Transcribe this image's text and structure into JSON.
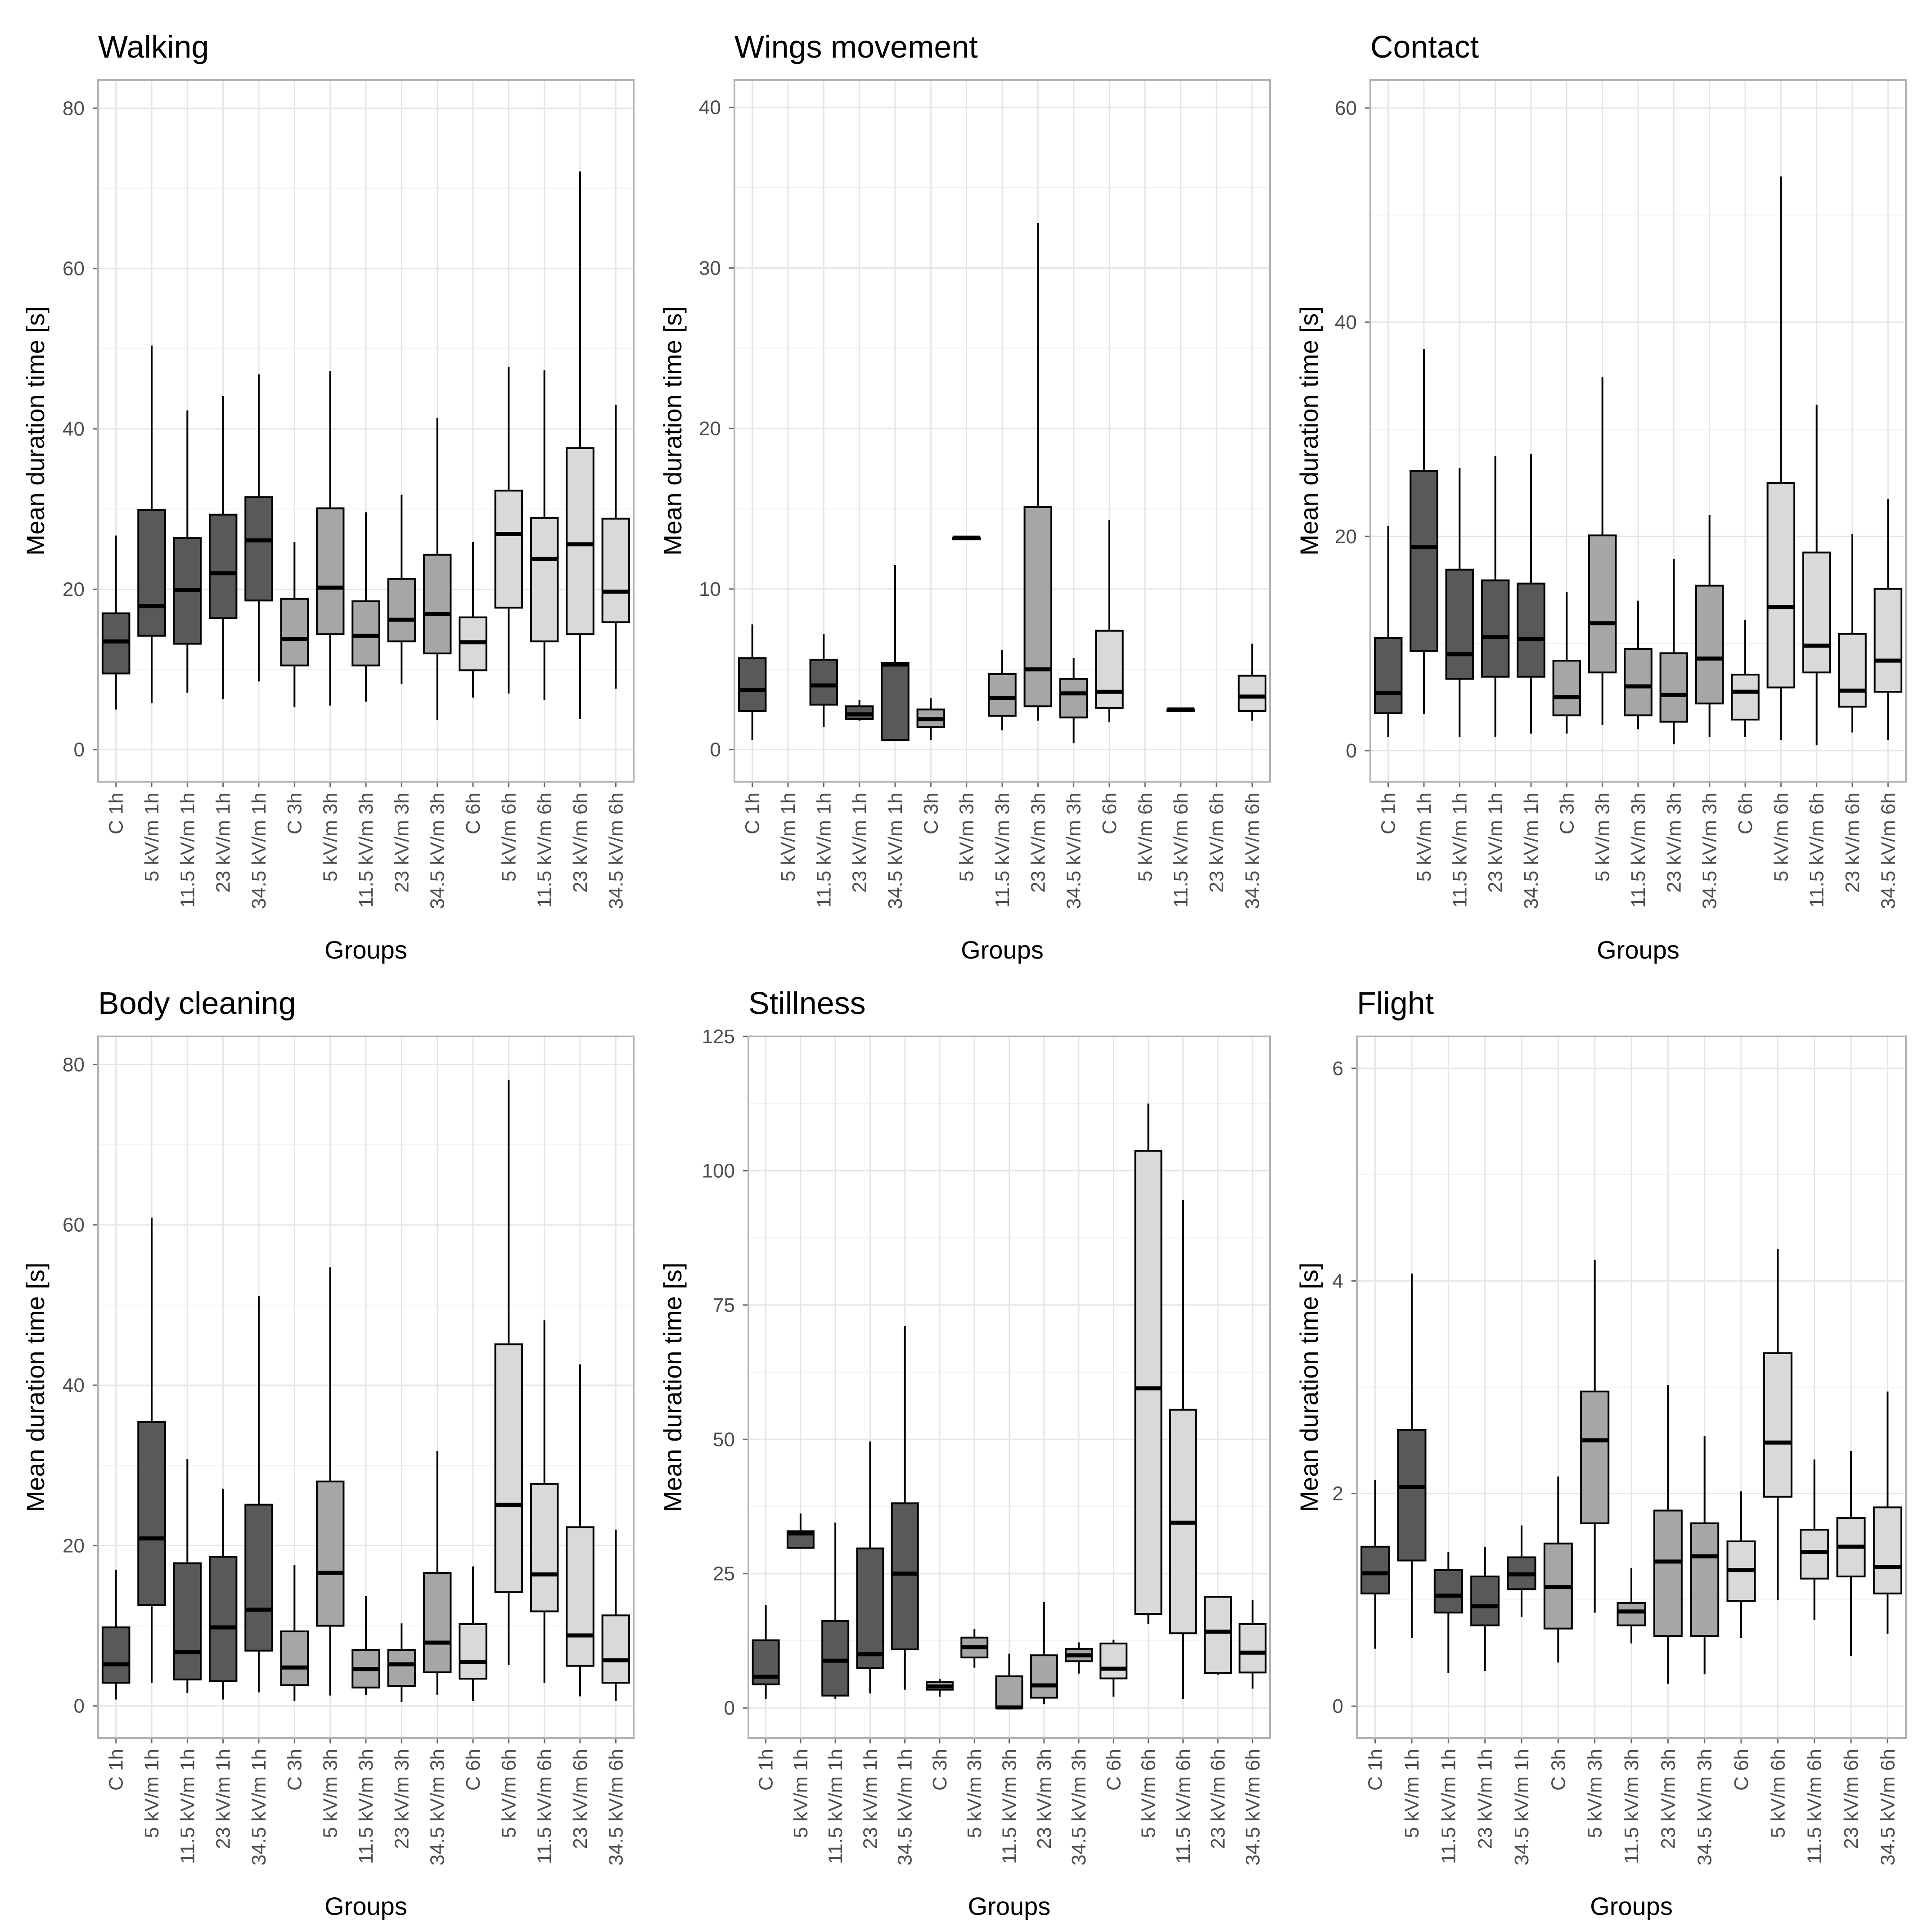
{
  "figure": {
    "groups": [
      "C 1h",
      "5 kV/m 1h",
      "11.5 kV/m 1h",
      "23 kV/m 1h",
      "34.5 kV/m 1h",
      "C 3h",
      "5 kV/m 3h",
      "11.5 kV/m 3h",
      "23 kV/m 3h",
      "34.5 kV/m 3h",
      "C 6h",
      "5 kV/m 6h",
      "11.5 kV/m 6h",
      "23 kV/m 6h",
      "34.5 kV/m 6h"
    ],
    "colors": {
      "1h": "#595959",
      "3h": "#a6a6a6",
      "6h": "#d9d9d9",
      "frame": "#b3b3b3",
      "grid": "#e5e5e5"
    }
  },
  "chart_data": [
    {
      "type": "boxplot",
      "title": "Walking",
      "xlabel": "Groups",
      "ylabel": "Mean duration time [s]",
      "ylim": [
        -4,
        83.5
      ],
      "yticks": [
        0,
        20,
        40,
        60,
        80
      ],
      "categories": [
        "C 1h",
        "5 kV/m 1h",
        "11.5 kV/m 1h",
        "23 kV/m 1h",
        "34.5 kV/m 1h",
        "C 3h",
        "5 kV/m 3h",
        "11.5 kV/m 3h",
        "23 kV/m 3h",
        "34.5 kV/m 3h",
        "C 6h",
        "5 kV/m 6h",
        "11.5 kV/m 6h",
        "23 kV/m 6h",
        "34.5 kV/m 6h"
      ],
      "boxes": [
        {
          "min": 5,
          "q1": 9.5,
          "median": 13.5,
          "q3": 17,
          "max": 26.7
        },
        {
          "min": 5.8,
          "q1": 14.2,
          "median": 17.9,
          "q3": 29.9,
          "max": 50.4
        },
        {
          "min": 7.1,
          "q1": 13.2,
          "median": 19.9,
          "q3": 26.4,
          "max": 42.3
        },
        {
          "min": 6.3,
          "q1": 16.4,
          "median": 22,
          "q3": 29.3,
          "max": 44.1
        },
        {
          "min": 8.5,
          "q1": 18.6,
          "median": 26.1,
          "q3": 31.5,
          "max": 46.8
        },
        {
          "min": 5.3,
          "q1": 10.5,
          "median": 13.8,
          "q3": 18.8,
          "max": 25.9
        },
        {
          "min": 5.5,
          "q1": 14.4,
          "median": 20.2,
          "q3": 30.1,
          "max": 47.2
        },
        {
          "min": 6,
          "q1": 10.5,
          "median": 14.2,
          "q3": 18.5,
          "max": 29.6
        },
        {
          "min": 8.2,
          "q1": 13.5,
          "median": 16.2,
          "q3": 21.3,
          "max": 31.8
        },
        {
          "min": 3.7,
          "q1": 12,
          "median": 16.9,
          "q3": 24.3,
          "max": 41.4
        },
        {
          "min": 6.5,
          "q1": 9.9,
          "median": 13.4,
          "q3": 16.5,
          "max": 25.9
        },
        {
          "min": 7,
          "q1": 17.7,
          "median": 26.9,
          "q3": 32.3,
          "max": 47.7
        },
        {
          "min": 6.2,
          "q1": 13.5,
          "median": 23.8,
          "q3": 28.9,
          "max": 47.3
        },
        {
          "min": 3.8,
          "q1": 14.4,
          "median": 25.6,
          "q3": 37.6,
          "max": 72.1
        },
        {
          "min": 7.6,
          "q1": 15.9,
          "median": 19.7,
          "q3": 28.8,
          "max": 43
        }
      ]
    },
    {
      "type": "boxplot",
      "title": "Wings movement",
      "xlabel": "Groups",
      "ylabel": "Mean duration time [s]",
      "ylim": [
        -2,
        41.7
      ],
      "yticks": [
        0,
        10,
        20,
        30,
        40
      ],
      "categories": [
        "C 1h",
        "5 kV/m 1h",
        "11.5 kV/m 1h",
        "23 kV/m 1h",
        "34.5 kV/m 1h",
        "C 3h",
        "5 kV/m 3h",
        "11.5 kV/m 3h",
        "23 kV/m 3h",
        "34.5 kV/m 3h",
        "C 6h",
        "5 kV/m 6h",
        "11.5 kV/m 6h",
        "23 kV/m 6h",
        "34.5 kV/m 6h"
      ],
      "boxes": [
        {
          "min": 0.6,
          "q1": 2.4,
          "median": 3.7,
          "q3": 5.7,
          "max": 7.8
        },
        null,
        {
          "min": 1.4,
          "q1": 2.8,
          "median": 4,
          "q3": 5.6,
          "max": 7.2
        },
        {
          "min": 1.8,
          "q1": 1.9,
          "median": 2.2,
          "q3": 2.7,
          "max": 3.1
        },
        {
          "min": 0.6,
          "q1": 0.6,
          "median": 5.3,
          "q3": 5.4,
          "max": 11.5
        },
        {
          "min": 0.6,
          "q1": 1.4,
          "median": 1.9,
          "q3": 2.5,
          "max": 3.2
        },
        {
          "min": 13.1,
          "q1": 13.1,
          "median": 13.2,
          "q3": 13.2,
          "max": 13.2
        },
        {
          "min": 1.2,
          "q1": 2.1,
          "median": 3.2,
          "q3": 4.7,
          "max": 6.2
        },
        {
          "min": 1.8,
          "q1": 2.7,
          "median": 5,
          "q3": 15.1,
          "max": 32.8
        },
        {
          "min": 0.4,
          "q1": 2,
          "median": 3.5,
          "q3": 4.4,
          "max": 5.7
        },
        {
          "min": 1.7,
          "q1": 2.6,
          "median": 3.6,
          "q3": 7.4,
          "max": 14.3
        },
        null,
        {
          "min": 2.4,
          "q1": 2.4,
          "median": 2.5,
          "q3": 2.5,
          "max": 2.5
        },
        null,
        {
          "min": 1.8,
          "q1": 2.4,
          "median": 3.3,
          "q3": 4.6,
          "max": 6.6
        }
      ]
    },
    {
      "type": "boxplot",
      "title": "Contact",
      "xlabel": "Groups",
      "ylabel": "Mean duration time [s]",
      "ylim": [
        -2.9,
        62.6
      ],
      "yticks": [
        0,
        20,
        40,
        60
      ],
      "categories": [
        "C 1h",
        "5 kV/m 1h",
        "11.5 kV/m 1h",
        "23 kV/m 1h",
        "34.5 kV/m 1h",
        "C 3h",
        "5 kV/m 3h",
        "11.5 kV/m 3h",
        "23 kV/m 3h",
        "34.5 kV/m 3h",
        "C 6h",
        "5 kV/m 6h",
        "11.5 kV/m 6h",
        "23 kV/m 6h",
        "34.5 kV/m 6h"
      ],
      "boxes": [
        {
          "min": 1.3,
          "q1": 3.5,
          "median": 5.4,
          "q3": 10.5,
          "max": 21
        },
        {
          "min": 3.4,
          "q1": 9.3,
          "median": 19,
          "q3": 26.1,
          "max": 37.5
        },
        {
          "min": 1.3,
          "q1": 6.7,
          "median": 9,
          "q3": 16.9,
          "max": 26.4
        },
        {
          "min": 1.3,
          "q1": 6.9,
          "median": 10.6,
          "q3": 15.9,
          "max": 27.5
        },
        {
          "min": 1.6,
          "q1": 6.9,
          "median": 10.4,
          "q3": 15.6,
          "max": 27.7
        },
        {
          "min": 1.6,
          "q1": 3.3,
          "median": 5,
          "q3": 8.4,
          "max": 14.8
        },
        {
          "min": 2.4,
          "q1": 7.3,
          "median": 11.9,
          "q3": 20.1,
          "max": 34.9
        },
        {
          "min": 2,
          "q1": 3.3,
          "median": 6,
          "q3": 9.5,
          "max": 14
        },
        {
          "min": 0.6,
          "q1": 2.7,
          "median": 5.2,
          "q3": 9.1,
          "max": 17.9
        },
        {
          "min": 1.3,
          "q1": 4.4,
          "median": 8.6,
          "q3": 15.4,
          "max": 22
        },
        {
          "min": 1.3,
          "q1": 2.9,
          "median": 5.5,
          "q3": 7.1,
          "max": 12.2
        },
        {
          "min": 1,
          "q1": 5.9,
          "median": 13.4,
          "q3": 25,
          "max": 53.6
        },
        {
          "min": 0.5,
          "q1": 7.3,
          "median": 9.8,
          "q3": 18.5,
          "max": 32.3
        },
        {
          "min": 1.7,
          "q1": 4.1,
          "median": 5.6,
          "q3": 10.9,
          "max": 20.2
        },
        {
          "min": 1,
          "q1": 5.5,
          "median": 8.4,
          "q3": 15.1,
          "max": 23.5
        }
      ]
    },
    {
      "type": "boxplot",
      "title": "Body cleaning",
      "xlabel": "Groups",
      "ylabel": "Mean duration time [s]",
      "ylim": [
        -4,
        83.5
      ],
      "yticks": [
        0,
        20,
        40,
        60,
        80
      ],
      "categories": [
        "C 1h",
        "5 kV/m 1h",
        "11.5 kV/m 1h",
        "23 kV/m 1h",
        "34.5 kV/m 1h",
        "C 3h",
        "5 kV/m 3h",
        "11.5 kV/m 3h",
        "23 kV/m 3h",
        "34.5 kV/m 3h",
        "C 6h",
        "5 kV/m 6h",
        "11.5 kV/m 6h",
        "23 kV/m 6h",
        "34.5 kV/m 6h"
      ],
      "boxes": [
        {
          "min": 0.8,
          "q1": 2.9,
          "median": 5.2,
          "q3": 9.8,
          "max": 17
        },
        {
          "min": 2.9,
          "q1": 12.6,
          "median": 20.9,
          "q3": 35.4,
          "max": 60.9
        },
        {
          "min": 1.6,
          "q1": 3.3,
          "median": 6.7,
          "q3": 17.8,
          "max": 30.8
        },
        {
          "min": 0.8,
          "q1": 3.1,
          "median": 9.8,
          "q3": 18.6,
          "max": 27.1
        },
        {
          "min": 1.7,
          "q1": 6.9,
          "median": 12,
          "q3": 25.1,
          "max": 51.1
        },
        {
          "min": 0.6,
          "q1": 2.6,
          "median": 4.8,
          "q3": 9.3,
          "max": 17.6
        },
        {
          "min": 1.3,
          "q1": 10,
          "median": 16.6,
          "q3": 28,
          "max": 54.7
        },
        {
          "min": 1.4,
          "q1": 2.3,
          "median": 4.6,
          "q3": 7,
          "max": 13.7
        },
        {
          "min": 0.5,
          "q1": 2.5,
          "median": 5.2,
          "q3": 7,
          "max": 10.3
        },
        {
          "min": 1.4,
          "q1": 4.2,
          "median": 7.9,
          "q3": 16.6,
          "max": 31.8
        },
        {
          "min": 0.6,
          "q1": 3.4,
          "median": 5.5,
          "q3": 10.2,
          "max": 17.4
        },
        {
          "min": 5.1,
          "q1": 14.2,
          "median": 25.1,
          "q3": 45.1,
          "max": 78.1
        },
        {
          "min": 2.9,
          "q1": 11.8,
          "median": 16.4,
          "q3": 27.7,
          "max": 48.1
        },
        {
          "min": 1.2,
          "q1": 5,
          "median": 8.8,
          "q3": 22.3,
          "max": 42.6
        },
        {
          "min": 0.6,
          "q1": 2.9,
          "median": 5.7,
          "q3": 11.3,
          "max": 22
        }
      ]
    },
    {
      "type": "boxplot",
      "title": "Stillness",
      "xlabel": "Groups",
      "ylabel": "Mean duration time [s]",
      "ylim": [
        -5.6,
        125
      ],
      "yticks": [
        0,
        25,
        50,
        75,
        100,
        125
      ],
      "categories": [
        "C 1h",
        "5 kV/m 1h",
        "11.5 kV/m 1h",
        "23 kV/m 1h",
        "34.5 kV/m 1h",
        "C 3h",
        "5 kV/m 3h",
        "11.5 kV/m 3h",
        "23 kV/m 3h",
        "34.5 kV/m 3h",
        "C 6h",
        "5 kV/m 6h",
        "11.5 kV/m 6h",
        "23 kV/m 6h",
        "34.5 kV/m 6h"
      ],
      "boxes": [
        {
          "min": 1.7,
          "q1": 4.4,
          "median": 5.8,
          "q3": 12.6,
          "max": 19.2
        },
        {
          "min": 29.8,
          "q1": 29.8,
          "median": 32.5,
          "q3": 32.9,
          "max": 36.2
        },
        {
          "min": 1.7,
          "q1": 2.3,
          "median": 8.8,
          "q3": 16.2,
          "max": 34.5
        },
        {
          "min": 2.7,
          "q1": 7.4,
          "median": 10,
          "q3": 29.7,
          "max": 49.6
        },
        {
          "min": 3.4,
          "q1": 10.9,
          "median": 25,
          "q3": 38.1,
          "max": 71.1
        },
        {
          "min": 2.1,
          "q1": 3.4,
          "median": 4,
          "q3": 4.8,
          "max": 5.4
        },
        {
          "min": 7.5,
          "q1": 9.4,
          "median": 11.3,
          "q3": 13.1,
          "max": 14.7
        },
        {
          "min": 0,
          "q1": 0,
          "median": 0.1,
          "q3": 5.9,
          "max": 10.1
        },
        {
          "min": 0.7,
          "q1": 1.9,
          "median": 4.2,
          "q3": 9.8,
          "max": 19.7
        },
        {
          "min": 6.4,
          "q1": 8.7,
          "median": 9.8,
          "q3": 11,
          "max": 12.2
        },
        {
          "min": 2.1,
          "q1": 5.5,
          "median": 7.3,
          "q3": 12,
          "max": 12.7
        },
        {
          "min": 15.6,
          "q1": 17.5,
          "median": 59.5,
          "q3": 103.7,
          "max": 112.5
        },
        {
          "min": 1.7,
          "q1": 13.9,
          "median": 34.5,
          "q3": 55.5,
          "max": 94.6
        },
        {
          "min": 6.2,
          "q1": 6.5,
          "median": 14.2,
          "q3": 20.7,
          "max": 20.7
        },
        {
          "min": 3.6,
          "q1": 6.6,
          "median": 10.3,
          "q3": 15.6,
          "max": 20.1
        }
      ]
    },
    {
      "type": "boxplot",
      "title": "Flight",
      "xlabel": "Groups",
      "ylabel": "Mean duration time [s]",
      "ylim": [
        -0.3,
        6.3
      ],
      "yticks": [
        0,
        2,
        4,
        6
      ],
      "categories": [
        "C 1h",
        "5 kV/m 1h",
        "11.5 kV/m 1h",
        "23 kV/m 1h",
        "34.5 kV/m 1h",
        "C 3h",
        "5 kV/m 3h",
        "11.5 kV/m 3h",
        "23 kV/m 3h",
        "34.5 kV/m 3h",
        "C 6h",
        "5 kV/m 6h",
        "11.5 kV/m 6h",
        "23 kV/m 6h",
        "34.5 kV/m 6h"
      ],
      "boxes": [
        {
          "min": 0.54,
          "q1": 1.06,
          "median": 1.25,
          "q3": 1.5,
          "max": 2.13
        },
        {
          "min": 0.64,
          "q1": 1.37,
          "median": 2.06,
          "q3": 2.6,
          "max": 4.07
        },
        {
          "min": 0.31,
          "q1": 0.88,
          "median": 1.04,
          "q3": 1.28,
          "max": 1.45
        },
        {
          "min": 0.33,
          "q1": 0.76,
          "median": 0.94,
          "q3": 1.22,
          "max": 1.5
        },
        {
          "min": 0.84,
          "q1": 1.1,
          "median": 1.24,
          "q3": 1.4,
          "max": 1.7
        },
        {
          "min": 0.41,
          "q1": 0.73,
          "median": 1.12,
          "q3": 1.53,
          "max": 2.16
        },
        {
          "min": 0.88,
          "q1": 1.72,
          "median": 2.5,
          "q3": 2.96,
          "max": 4.2
        },
        {
          "min": 0.59,
          "q1": 0.76,
          "median": 0.89,
          "q3": 0.97,
          "max": 1.3
        },
        {
          "min": 0.21,
          "q1": 0.66,
          "median": 1.36,
          "q3": 1.84,
          "max": 3.02
        },
        {
          "min": 0.3,
          "q1": 0.66,
          "median": 1.41,
          "q3": 1.72,
          "max": 2.54
        },
        {
          "min": 0.64,
          "q1": 0.99,
          "median": 1.28,
          "q3": 1.55,
          "max": 2.02
        },
        {
          "min": 1,
          "q1": 1.97,
          "median": 2.48,
          "q3": 3.32,
          "max": 4.3
        },
        {
          "min": 0.81,
          "q1": 1.2,
          "median": 1.45,
          "q3": 1.66,
          "max": 2.32
        },
        {
          "min": 0.47,
          "q1": 1.22,
          "median": 1.5,
          "q3": 1.77,
          "max": 2.4
        },
        {
          "min": 0.68,
          "q1": 1.06,
          "median": 1.31,
          "q3": 1.87,
          "max": 2.96
        }
      ]
    }
  ]
}
